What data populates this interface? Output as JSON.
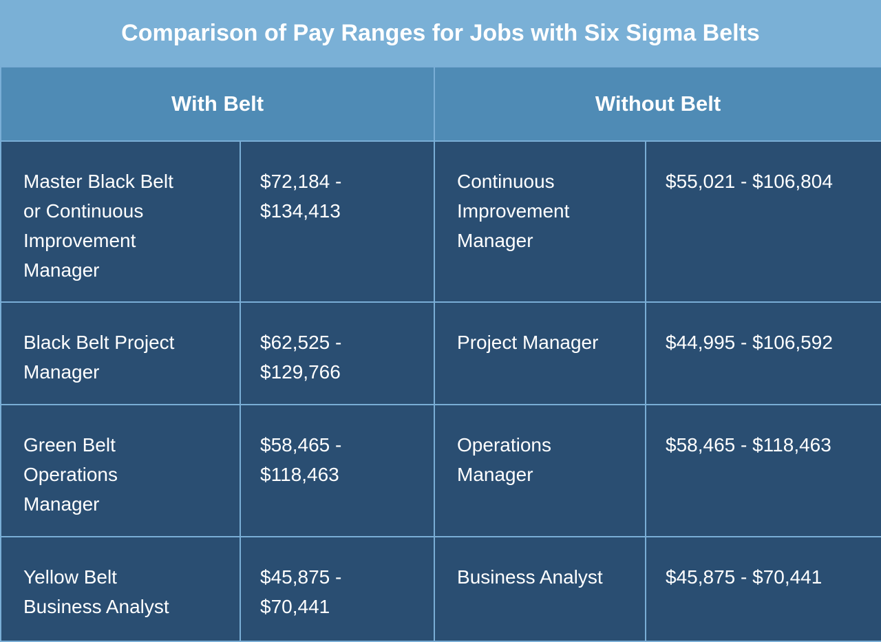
{
  "title": "Comparison of Pay Ranges for Jobs with Six Sigma Belts",
  "headers": {
    "with_belt": "With Belt",
    "without_belt": "Without Belt"
  },
  "rows": [
    {
      "with_job": "Master Black Belt\nor Continuous\nImprovement\nManager",
      "with_pay": "$72,184 -\n$134,413",
      "without_job": "Continuous\nImprovement\nManager",
      "without_pay": "$55,021 - $106,804"
    },
    {
      "with_job": "Black Belt Project\nManager",
      "with_pay": "$62,525 -\n$129,766",
      "without_job": "Project Manager",
      "without_pay": "$44,995 - $106,592"
    },
    {
      "with_job": "Green Belt\nOperations\nManager",
      "with_pay": "$58,465 -\n$118,463",
      "without_job": "Operations\nManager",
      "without_pay": "$58,465 - $118,463"
    },
    {
      "with_job": "Yellow Belt\nBusiness Analyst",
      "with_pay": "$45,875 -\n$70,441",
      "without_job": "Business Analyst",
      "without_pay": "$45,875 - $70,441"
    }
  ]
}
